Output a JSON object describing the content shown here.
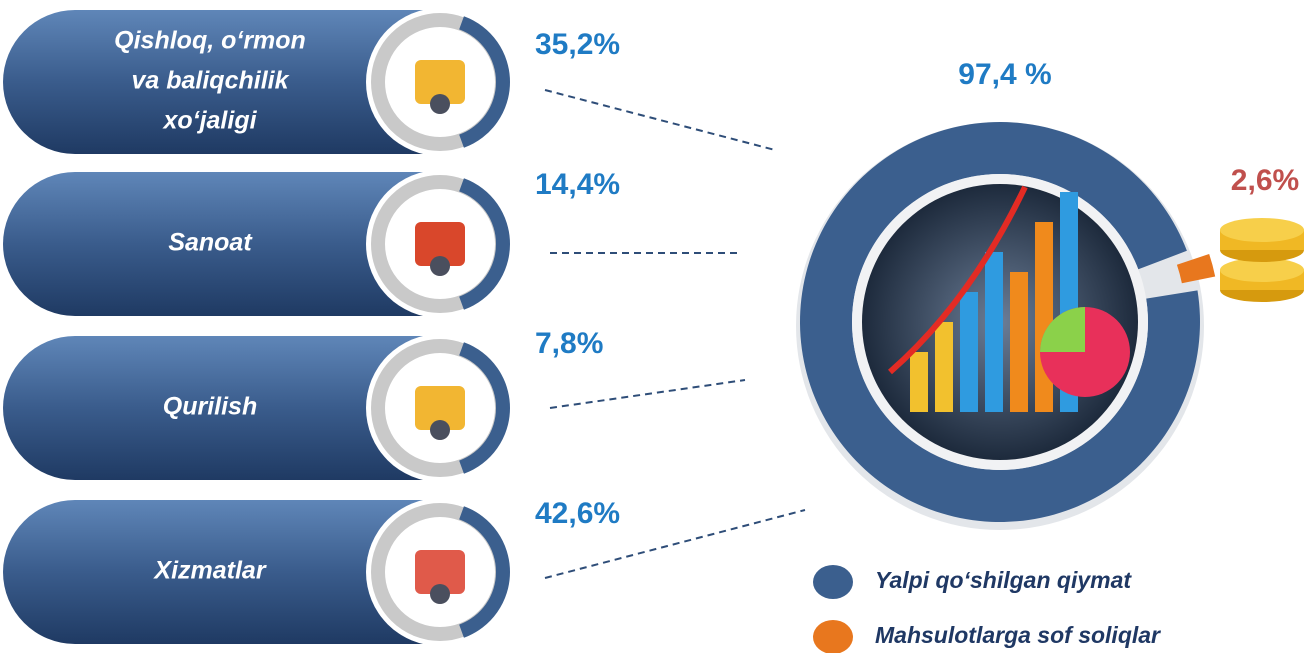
{
  "sectors": [
    {
      "label": [
        "Qishloq, o‘rmon",
        "va baliqchilik",
        "xo‘jaligi"
      ],
      "share": "35,2%"
    },
    {
      "label": [
        "Sanoat"
      ],
      "share": "14,4%"
    },
    {
      "label": [
        "Qurilish"
      ],
      "share": "7,8%"
    },
    {
      "label": [
        "Xizmatlar"
      ],
      "share": "42,6%"
    }
  ],
  "chart_data": {
    "type": "pie",
    "donut": true,
    "categories": [
      "Yalpi qo‘shilgan qiymat",
      "Mahsulotlarga sof soliqlar"
    ],
    "values": [
      97.4,
      2.6
    ],
    "value_labels": [
      "97,4 %",
      "2,6%"
    ],
    "colors": [
      "#3b5f8e",
      "#e8771e"
    ],
    "label_colors": [
      "#1f7bc4",
      "#c0504d"
    ]
  }
}
